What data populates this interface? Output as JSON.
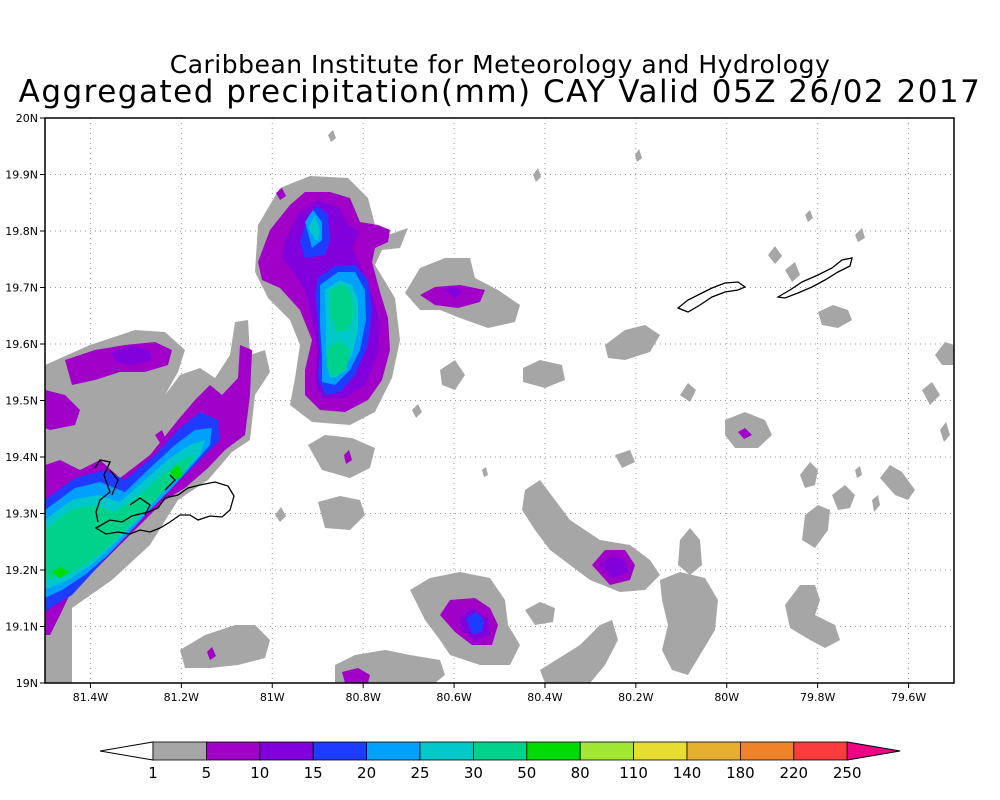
{
  "header": {
    "title": "Caribbean Institute for Meteorology and Hydrology",
    "subtitle": "Aggregated precipitation(mm) CAY Valid 05Z 26/02 2017"
  },
  "map": {
    "lon_range": [
      -81.5,
      -79.5
    ],
    "lat_range": [
      19.0,
      20.0
    ],
    "x_ticks": [
      {
        "value": -81.4,
        "label": "81.4W"
      },
      {
        "value": -81.2,
        "label": "81.2W"
      },
      {
        "value": -81.0,
        "label": "81W"
      },
      {
        "value": -80.8,
        "label": "80.8W"
      },
      {
        "value": -80.6,
        "label": "80.6W"
      },
      {
        "value": -80.4,
        "label": "80.4W"
      },
      {
        "value": -80.2,
        "label": "80.2W"
      },
      {
        "value": -80.0,
        "label": "80W"
      },
      {
        "value": -79.8,
        "label": "79.8W"
      },
      {
        "value": -79.6,
        "label": "79.6W"
      }
    ],
    "y_ticks": [
      {
        "value": 19.0,
        "label": "19N"
      },
      {
        "value": 19.1,
        "label": "19.1N"
      },
      {
        "value": 19.2,
        "label": "19.2N"
      },
      {
        "value": 19.3,
        "label": "19.3N"
      },
      {
        "value": 19.4,
        "label": "19.4N"
      },
      {
        "value": 19.5,
        "label": "19.5N"
      },
      {
        "value": 19.6,
        "label": "19.6N"
      },
      {
        "value": 19.7,
        "label": "19.7N"
      },
      {
        "value": 19.8,
        "label": "19.8N"
      },
      {
        "value": 19.9,
        "label": "19.9N"
      },
      {
        "value": 20.0,
        "label": "20N"
      }
    ],
    "grid": "dotted"
  },
  "colorbar": {
    "labels": [
      "1",
      "5",
      "10",
      "15",
      "20",
      "25",
      "30",
      "50",
      "80",
      "110",
      "140",
      "180",
      "220",
      "250"
    ],
    "colors": [
      "#a6a6a6",
      "#a000c8",
      "#8200dc",
      "#1e3cff",
      "#00a0ff",
      "#00c8c8",
      "#00d28c",
      "#00dc00",
      "#a0e632",
      "#e6dc32",
      "#e6af2d",
      "#f08228",
      "#fa3c3c",
      "#f00082"
    ]
  }
}
